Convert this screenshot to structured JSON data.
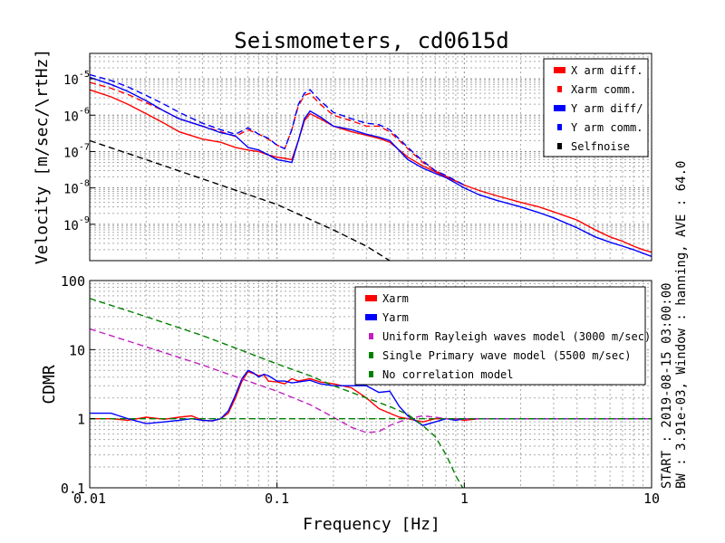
{
  "figure": {
    "title": "Seismometers, cd0615d",
    "side_text_1": "START : 2019-08-15 03:00:00",
    "side_text_2": "BW : 3.91e-03, Window : hanning, AVE : 64.0"
  },
  "chart_data": [
    {
      "type": "line",
      "ylabel": "Velocity [m/sec/\\rtHz]",
      "yscale": "log",
      "xscale": "log",
      "xlim": [
        0.01,
        10
      ],
      "ylim": [
        1e-10,
        5e-05
      ],
      "grid": true,
      "legend_position": "top-right",
      "yticks": [
        {
          "label": "10",
          "exp": "-5",
          "value": 1e-05
        },
        {
          "label": "10",
          "exp": "-6",
          "value": 1e-06
        },
        {
          "label": "10",
          "exp": "-7",
          "value": 1e-07
        },
        {
          "label": "10",
          "exp": "-8",
          "value": 1e-08
        },
        {
          "label": "10",
          "exp": "-9",
          "value": 1e-09
        }
      ],
      "series": [
        {
          "name": "X arm diff.",
          "color": "#ff0000",
          "style": "solid",
          "x": [
            0.01,
            0.013,
            0.016,
            0.02,
            0.025,
            0.03,
            0.04,
            0.05,
            0.06,
            0.07,
            0.08,
            0.09,
            0.1,
            0.11,
            0.12,
            0.13,
            0.14,
            0.15,
            0.17,
            0.2,
            0.25,
            0.3,
            0.35,
            0.4,
            0.5,
            0.6,
            0.7,
            0.8,
            1,
            1.2,
            1.5,
            2,
            2.5,
            3,
            4,
            5,
            6,
            7,
            8,
            9,
            10
          ],
          "y": [
            5e-06,
            3.2e-06,
            2e-06,
            1.1e-06,
            6e-07,
            3.5e-07,
            2.2e-07,
            1.8e-07,
            1.3e-07,
            1.1e-07,
            1e-07,
            8e-08,
            7e-08,
            6.5e-08,
            6e-08,
            2e-07,
            7e-07,
            1.1e-06,
            8e-07,
            5e-07,
            3.5e-07,
            2.8e-07,
            2.3e-07,
            1.8e-07,
            7e-08,
            4e-08,
            2.8e-08,
            2e-08,
            1.2e-08,
            8.5e-09,
            6e-09,
            4e-09,
            3e-09,
            2.2e-09,
            1.3e-09,
            7e-10,
            4.5e-10,
            3.4e-10,
            2.5e-10,
            2e-10,
            1.7e-10
          ]
        },
        {
          "name": "Xarm comm.",
          "color": "#ff0000",
          "style": "dashed",
          "x": [
            0.01,
            0.013,
            0.016,
            0.02,
            0.025,
            0.03,
            0.04,
            0.05,
            0.06,
            0.07,
            0.08,
            0.09,
            0.1,
            0.11,
            0.12,
            0.13,
            0.14,
            0.15,
            0.17,
            0.2,
            0.25,
            0.3,
            0.35,
            0.4,
            0.5,
            0.6,
            0.7,
            0.8,
            1
          ],
          "y": [
            8e-06,
            5.5e-06,
            3.7e-06,
            2.2e-06,
            1.3e-06,
            8e-07,
            5e-07,
            3.5e-07,
            2.6e-07,
            4e-07,
            3e-07,
            2.2e-07,
            1.5e-07,
            1.2e-07,
            4e-07,
            1.8e-06,
            3.5e-06,
            4e-06,
            2e-06,
            1e-06,
            7e-07,
            5e-07,
            5e-07,
            3.5e-07,
            1.2e-07,
            5e-08,
            3e-08,
            2.1e-08,
            1.2e-08
          ]
        },
        {
          "name": "Y arm diff/",
          "color": "#0000ff",
          "style": "solid",
          "x": [
            0.01,
            0.013,
            0.016,
            0.02,
            0.025,
            0.03,
            0.04,
            0.05,
            0.06,
            0.07,
            0.08,
            0.09,
            0.1,
            0.11,
            0.12,
            0.13,
            0.14,
            0.15,
            0.17,
            0.2,
            0.25,
            0.3,
            0.35,
            0.4,
            0.5,
            0.6,
            0.7,
            0.8,
            1,
            1.2,
            1.5,
            2,
            2.5,
            3,
            4,
            5,
            6,
            7,
            8,
            9,
            10
          ],
          "y": [
            1.1e-05,
            7e-06,
            4.5e-06,
            2.5e-06,
            1.3e-06,
            8e-07,
            5e-07,
            3.3e-07,
            2.7e-07,
            1.3e-07,
            1.1e-07,
            8e-08,
            6e-08,
            5.5e-08,
            5e-08,
            2e-07,
            8e-07,
            1.3e-06,
            9e-07,
            5e-07,
            4e-07,
            3e-07,
            2.5e-07,
            2e-07,
            6e-08,
            3.5e-08,
            2.5e-08,
            1.9e-08,
            1e-08,
            6.5e-09,
            4.5e-09,
            3e-09,
            2.1e-09,
            1.5e-09,
            8e-10,
            4.5e-10,
            3.2e-10,
            2.5e-10,
            2e-10,
            1.6e-10,
            1.3e-10
          ]
        },
        {
          "name": "Y arm comm.",
          "color": "#0000ff",
          "style": "dashed",
          "x": [
            0.01,
            0.013,
            0.016,
            0.02,
            0.025,
            0.03,
            0.04,
            0.05,
            0.06,
            0.07,
            0.08,
            0.09,
            0.1,
            0.11,
            0.12,
            0.13,
            0.14,
            0.15,
            0.17,
            0.2,
            0.25,
            0.3,
            0.35,
            0.4,
            0.5,
            0.6,
            0.7,
            0.8,
            1
          ],
          "y": [
            1.3e-05,
            9e-06,
            6e-06,
            3.5e-06,
            2e-06,
            1.2e-06,
            6e-07,
            4e-07,
            3e-07,
            4.5e-07,
            3e-07,
            2.3e-07,
            1.5e-07,
            1.2e-07,
            4e-07,
            2e-06,
            4e-06,
            5e-06,
            2.5e-06,
            1.2e-06,
            8e-07,
            6e-07,
            5.5e-07,
            4e-07,
            1.3e-07,
            5.5e-08,
            3e-08,
            2.2e-08,
            1.2e-08
          ]
        },
        {
          "name": "Selfnoise",
          "color": "#000000",
          "style": "dashed",
          "x": [
            0.01,
            0.02,
            0.05,
            0.1,
            0.2,
            0.3,
            0.4
          ],
          "y": [
            2e-07,
            6e-08,
            1.2e-08,
            3.5e-09,
            7e-10,
            2.5e-10,
            1e-10
          ]
        }
      ]
    },
    {
      "type": "line",
      "xlabel": "Frequency [Hz]",
      "ylabel": "CDMR",
      "yscale": "log",
      "xscale": "log",
      "xlim": [
        0.01,
        10
      ],
      "ylim": [
        0.1,
        100
      ],
      "grid": true,
      "legend_position": "top-right",
      "yticks": [
        {
          "label": "100",
          "value": 100
        },
        {
          "label": "10",
          "value": 10
        },
        {
          "label": "1",
          "value": 1
        },
        {
          "label": "0.1",
          "value": 0.1
        }
      ],
      "xticks": [
        {
          "label": "0.01",
          "value": 0.01
        },
        {
          "label": "0.1",
          "value": 0.1
        },
        {
          "label": "1",
          "value": 1
        },
        {
          "label": "10",
          "value": 10
        }
      ],
      "series": [
        {
          "name": "Xarm",
          "color": "#ff0000",
          "style": "solid",
          "x": [
            0.01,
            0.013,
            0.016,
            0.02,
            0.025,
            0.03,
            0.035,
            0.04,
            0.045,
            0.05,
            0.055,
            0.06,
            0.065,
            0.07,
            0.075,
            0.08,
            0.085,
            0.09,
            0.1,
            0.11,
            0.12,
            0.13,
            0.15,
            0.17,
            0.2,
            0.25,
            0.3,
            0.35,
            0.4,
            0.45,
            0.5,
            0.6,
            0.7,
            0.8,
            0.9,
            1,
            1.2,
            1.5,
            2,
            3,
            4,
            5,
            6,
            7,
            8,
            9,
            10
          ],
          "y": [
            1,
            1,
            0.95,
            1.05,
            0.98,
            1.05,
            1.1,
            0.95,
            0.93,
            1,
            1.2,
            2,
            3.5,
            4.8,
            4.5,
            4.2,
            4.3,
            3.5,
            3.4,
            3.2,
            3.8,
            3.5,
            3.8,
            3.4,
            3.2,
            2.8,
            2,
            1.4,
            1.2,
            1.05,
            1,
            0.9,
            1,
            1,
            1,
            0.95,
            1,
            1,
            1,
            1,
            1,
            1,
            1,
            1,
            1,
            1,
            1
          ]
        },
        {
          "name": "Yarm",
          "color": "#0000ff",
          "style": "solid",
          "x": [
            0.01,
            0.013,
            0.016,
            0.02,
            0.025,
            0.03,
            0.035,
            0.04,
            0.045,
            0.05,
            0.055,
            0.06,
            0.065,
            0.07,
            0.075,
            0.08,
            0.085,
            0.09,
            0.1,
            0.11,
            0.12,
            0.13,
            0.15,
            0.17,
            0.2,
            0.25,
            0.3,
            0.35,
            0.4,
            0.45,
            0.5,
            0.6,
            0.7,
            0.8,
            0.9,
            1,
            1.2,
            1.5,
            2,
            3,
            4,
            5,
            6,
            7,
            8,
            9,
            10
          ],
          "y": [
            1.2,
            1.2,
            1,
            0.85,
            0.9,
            0.95,
            1,
            0.95,
            0.93,
            1,
            1.3,
            2.2,
            3.8,
            5,
            4.6,
            4,
            4.4,
            4.2,
            3.5,
            3.5,
            3.3,
            3.4,
            3.6,
            3.2,
            3,
            3,
            3,
            2.4,
            2.5,
            1.5,
            1.1,
            0.8,
            0.9,
            1,
            0.95,
            1,
            1,
            1,
            1,
            1,
            1,
            1,
            1,
            1,
            1,
            1,
            1
          ]
        },
        {
          "name": "Uniform Rayleigh waves model (3000 m/sec)",
          "color": "#c020c0",
          "style": "dashed",
          "x": [
            0.01,
            0.02,
            0.04,
            0.07,
            0.1,
            0.15,
            0.2,
            0.25,
            0.3,
            0.35,
            0.4,
            0.5,
            0.6,
            0.7,
            0.8,
            1,
            1.5,
            2,
            3,
            5,
            10
          ],
          "y": [
            20,
            11,
            6,
            3.5,
            2.5,
            1.6,
            1.05,
            0.75,
            0.63,
            0.65,
            0.8,
            1,
            1.1,
            1.05,
            1,
            1,
            1,
            1,
            1,
            1,
            1
          ]
        },
        {
          "name": "Single Primary wave model (5500 m/sec)",
          "color": "#008000",
          "style": "dashed",
          "x": [
            0.01,
            0.02,
            0.04,
            0.07,
            0.1,
            0.15,
            0.2,
            0.3,
            0.4,
            0.5,
            0.6,
            0.7,
            0.8,
            0.9,
            0.98
          ],
          "y": [
            55,
            30,
            16,
            9,
            6.2,
            4.2,
            3,
            2,
            1.5,
            1.15,
            0.8,
            0.55,
            0.3,
            0.15,
            0.1
          ]
        },
        {
          "name": "No correlation model",
          "color": "#008000",
          "style": "dashed",
          "x": [
            0.01,
            10
          ],
          "y": [
            1,
            1
          ]
        }
      ]
    }
  ]
}
